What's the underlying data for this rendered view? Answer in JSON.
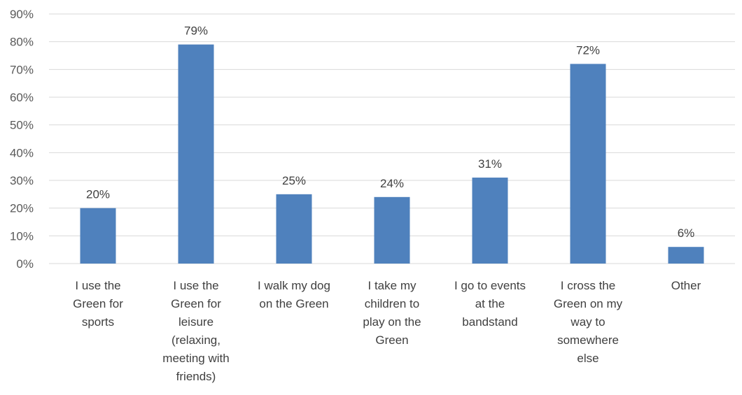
{
  "chart_data": {
    "type": "bar",
    "title": "",
    "xlabel": "",
    "ylabel": "",
    "ylim": [
      0,
      90
    ],
    "y_ticks": [
      "0%",
      "10%",
      "20%",
      "30%",
      "40%",
      "50%",
      "60%",
      "70%",
      "80%",
      "90%"
    ],
    "grid": true,
    "legend": "none",
    "bar_color": "#4f81bd",
    "categories": [
      [
        "I use the",
        "Green for",
        "sports"
      ],
      [
        "I use the",
        "Green for",
        "leisure",
        "(relaxing,",
        "meeting with",
        "friends)"
      ],
      [
        "I walk my dog",
        "on the Green"
      ],
      [
        "I take my",
        "children to",
        "play on the",
        "Green"
      ],
      [
        "I go to events",
        "at the",
        "bandstand"
      ],
      [
        "I cross the",
        "Green on my",
        "way to",
        "somewhere",
        "else"
      ],
      [
        "Other"
      ]
    ],
    "values": [
      20,
      79,
      25,
      24,
      31,
      72,
      6
    ],
    "data_labels": [
      "20%",
      "79%",
      "25%",
      "24%",
      "31%",
      "72%",
      "6%"
    ]
  }
}
